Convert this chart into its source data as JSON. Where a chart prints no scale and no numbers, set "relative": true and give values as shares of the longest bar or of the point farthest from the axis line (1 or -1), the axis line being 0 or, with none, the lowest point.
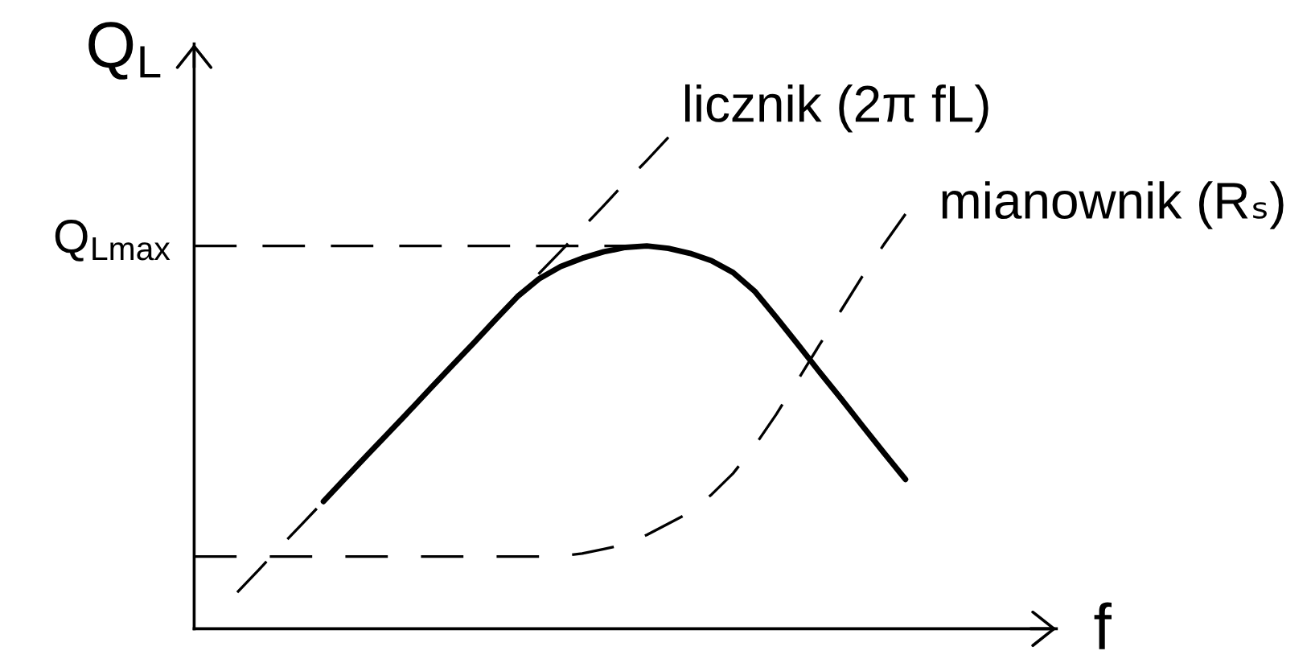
{
  "chart_data": {
    "type": "line",
    "relative": true,
    "xlabel": "f",
    "ylabel": "Q$_{L}$",
    "legend": false,
    "marker": "none",
    "categories": [
      null,
      null,
      null,
      null,
      null,
      null,
      null,
      null,
      null,
      null,
      null,
      null,
      null,
      null,
      null,
      null,
      null,
      null,
      null,
      null,
      null,
      null,
      null,
      null,
      null,
      null,
      null,
      null,
      null,
      null,
      null,
      null,
      null,
      null
    ],
    "series": [
      {
        "color": "#000000",
        "line_style": "solid",
        "values": [
          null,
          null,
          null,
          null,
          null,
          null,
          0.259,
          0.306,
          0.352,
          0.398,
          0.444,
          0.491,
          0.537,
          0.583,
          0.63,
          0.676,
          0.712,
          0.737,
          0.754,
          0.767,
          0.776,
          0.779,
          0.774,
          0.764,
          0.749,
          0.725,
          0.687,
          0.634,
          0.579,
          0.523,
          0.469,
          0.413,
          0.358,
          0.304
        ]
      },
      {
        "name": "licznik (2π fL)",
        "color": "#000000",
        "line_style": "dashed",
        "values": [
          null,
          null,
          0.074,
          0.12,
          0.167,
          0.213,
          0.259,
          0.306,
          0.352,
          0.398,
          0.444,
          0.491,
          0.537,
          0.583,
          0.63,
          0.676,
          0.723,
          0.768,
          0.815,
          0.861,
          0.908,
          0.953,
          1.0,
          null,
          null,
          null,
          null,
          null,
          null,
          null,
          null,
          null,
          null,
          null
        ]
      },
      {
        "name": "mianownik (Rₛ)",
        "color": "#000000",
        "line_style": "dashed",
        "values": [
          0.147,
          0.147,
          0.147,
          0.147,
          0.147,
          0.147,
          0.147,
          0.147,
          0.147,
          0.147,
          0.147,
          0.147,
          0.147,
          0.147,
          0.147,
          0.147,
          0.147,
          0.148,
          0.153,
          0.162,
          0.172,
          0.191,
          0.214,
          0.237,
          0.273,
          0.316,
          0.372,
          0.436,
          0.506,
          0.577,
          0.647,
          0.717,
          0.782,
          0.844
        ]
      }
    ],
    "ref_lines": [
      {
        "axis": "y",
        "value": 0.779,
        "label": "Q$_{Lmax}$",
        "color": "#000000",
        "line_style": "dashed"
      }
    ]
  }
}
